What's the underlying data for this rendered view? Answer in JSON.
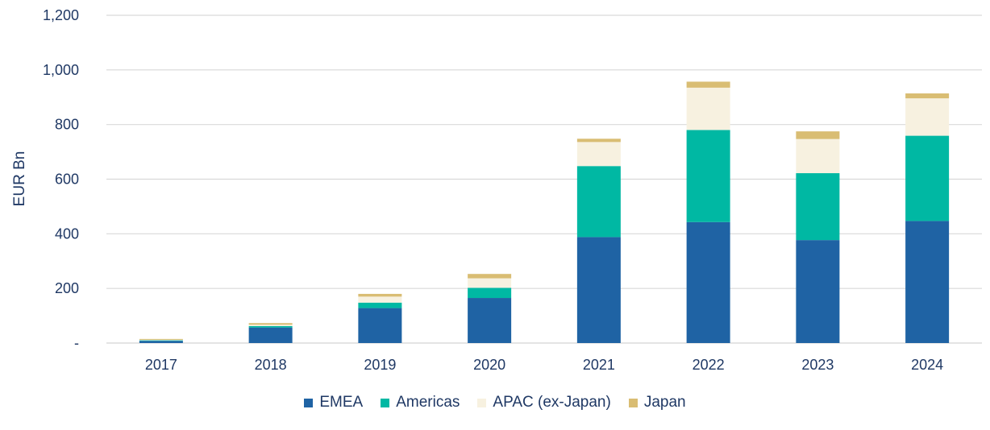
{
  "chart_data": {
    "type": "bar",
    "stacked": true,
    "title": "",
    "xlabel": "",
    "ylabel": "EUR Bn",
    "categories": [
      "2017",
      "2018",
      "2019",
      "2020",
      "2021",
      "2022",
      "2023",
      "2024"
    ],
    "yticks": [
      "-",
      "200",
      "400",
      "600",
      "800",
      "1,000",
      "1,200"
    ],
    "ylim": [
      0,
      1200
    ],
    "grid": true,
    "legend_position": "bottom",
    "series": [
      {
        "name": "EMEA",
        "color": "#1f63a4",
        "values": [
          8,
          57,
          128,
          165,
          388,
          443,
          377,
          447
        ]
      },
      {
        "name": "Americas",
        "color": "#00b8a3",
        "values": [
          2,
          5,
          20,
          37,
          260,
          337,
          245,
          312
        ]
      },
      {
        "name": "APAC (ex-Japan)",
        "color": "#f7f1e0",
        "values": [
          2,
          5,
          22,
          35,
          88,
          155,
          125,
          137
        ]
      },
      {
        "name": "Japan",
        "color": "#d9bd73",
        "values": [
          3,
          6,
          10,
          16,
          12,
          22,
          28,
          18
        ]
      }
    ]
  }
}
